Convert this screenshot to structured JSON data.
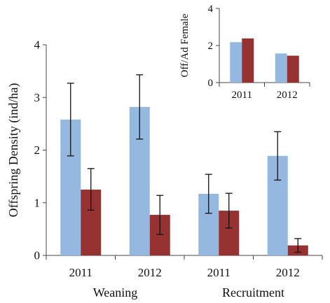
{
  "chart_data": [
    {
      "type": "bar",
      "title": "",
      "ylabel": "Offspring Density (ind/ha)",
      "xlabel": "",
      "ylim": [
        0,
        4
      ],
      "yticks": [
        0,
        1,
        2,
        3,
        4
      ],
      "grid": false,
      "categories": [
        "2011",
        "2012",
        "2011",
        "2012"
      ],
      "groups": [
        {
          "label": "Weaning",
          "categories": [
            0,
            1
          ]
        },
        {
          "label": "Recruitment",
          "categories": [
            2,
            3
          ]
        }
      ],
      "series": [
        {
          "color": "#95b8e0",
          "values": [
            2.58,
            2.82,
            1.17,
            1.89
          ],
          "err_low": [
            1.89,
            2.21,
            0.8,
            1.43
          ],
          "err_high": [
            3.27,
            3.43,
            1.54,
            2.35
          ]
        },
        {
          "color": "#963232",
          "values": [
            1.25,
            0.77,
            0.85,
            0.19
          ],
          "err_low": [
            0.86,
            0.4,
            0.52,
            0.06
          ],
          "err_high": [
            1.65,
            1.14,
            1.18,
            0.32
          ]
        }
      ]
    },
    {
      "type": "bar",
      "title": "",
      "ylabel": "Off/Ad Female",
      "xlabel": "",
      "ylim": [
        0,
        4
      ],
      "yticks": [
        0,
        2,
        4
      ],
      "grid": false,
      "categories": [
        "2011",
        "2012"
      ],
      "series": [
        {
          "color": "#95b8e0",
          "values": [
            2.18,
            1.57
          ]
        },
        {
          "color": "#963232",
          "values": [
            2.38,
            1.45
          ]
        }
      ]
    }
  ]
}
